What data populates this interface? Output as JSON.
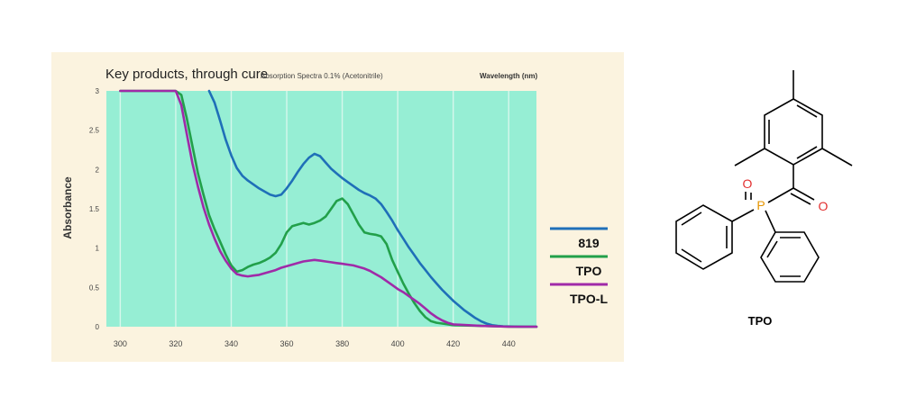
{
  "chart_data": {
    "type": "line",
    "title": "Key products, through cure",
    "subtitle": "Absorption Spectra 0.1% (Acetonitrile)",
    "xlabel": "Wavelength (nm)",
    "ylabel": "Absorbance",
    "xlim": [
      295,
      450
    ],
    "ylim": [
      0,
      3
    ],
    "xticks": [
      "300",
      "320",
      "340",
      "360",
      "380",
      "400",
      "420",
      "440"
    ],
    "yticks": [
      "0",
      "0.5",
      "1",
      "1.5",
      "2",
      "2.5",
      "3"
    ],
    "grid": true,
    "legend_position": "right",
    "series": [
      {
        "name": "819",
        "color": "#1f6fb8",
        "x": [
          332,
          334,
          336,
          338,
          340,
          342,
          344,
          346,
          348,
          350,
          352,
          354,
          356,
          358,
          360,
          362,
          364,
          366,
          368,
          370,
          372,
          374,
          376,
          378,
          380,
          382,
          384,
          386,
          388,
          390,
          392,
          394,
          396,
          398,
          400,
          402,
          404,
          406,
          408,
          410,
          412,
          414,
          416,
          418,
          420,
          422,
          424,
          426,
          428,
          430,
          432,
          434,
          436,
          438,
          440,
          442,
          444,
          446,
          448,
          450
        ],
        "y": [
          3.0,
          2.85,
          2.62,
          2.38,
          2.18,
          2.02,
          1.92,
          1.86,
          1.81,
          1.76,
          1.72,
          1.68,
          1.66,
          1.68,
          1.76,
          1.86,
          1.97,
          2.07,
          2.15,
          2.2,
          2.17,
          2.09,
          2.01,
          1.95,
          1.89,
          1.84,
          1.79,
          1.74,
          1.7,
          1.67,
          1.63,
          1.56,
          1.46,
          1.35,
          1.23,
          1.12,
          1.01,
          0.91,
          0.81,
          0.72,
          0.63,
          0.55,
          0.47,
          0.4,
          0.33,
          0.27,
          0.21,
          0.16,
          0.11,
          0.07,
          0.04,
          0.02,
          0.01,
          0.005,
          0.003,
          0.002,
          0.001,
          0.0,
          0.0,
          0.0
        ]
      },
      {
        "name": "TPO",
        "color": "#22a04a",
        "x": [
          300,
          318,
          320,
          322,
          324,
          326,
          328,
          330,
          332,
          334,
          336,
          338,
          340,
          342,
          344,
          346,
          348,
          350,
          352,
          354,
          356,
          358,
          360,
          362,
          364,
          366,
          368,
          370,
          372,
          374,
          376,
          378,
          380,
          382,
          384,
          386,
          388,
          390,
          392,
          394,
          396,
          398,
          400,
          402,
          404,
          406,
          408,
          410,
          412,
          414,
          416,
          418,
          420,
          430,
          440,
          450
        ],
        "y": [
          3.0,
          3.0,
          3.0,
          2.95,
          2.65,
          2.3,
          1.95,
          1.68,
          1.42,
          1.24,
          1.08,
          0.92,
          0.78,
          0.7,
          0.72,
          0.76,
          0.79,
          0.81,
          0.84,
          0.88,
          0.94,
          1.05,
          1.2,
          1.28,
          1.3,
          1.32,
          1.3,
          1.32,
          1.35,
          1.4,
          1.5,
          1.6,
          1.63,
          1.56,
          1.43,
          1.3,
          1.2,
          1.18,
          1.17,
          1.15,
          1.05,
          0.85,
          0.7,
          0.55,
          0.42,
          0.3,
          0.2,
          0.12,
          0.07,
          0.05,
          0.04,
          0.03,
          0.02,
          0.01,
          0.0,
          0.0
        ]
      },
      {
        "name": "TPO-L",
        "color": "#a02aa8",
        "x": [
          300,
          318,
          320,
          322,
          324,
          326,
          328,
          330,
          332,
          334,
          336,
          338,
          340,
          342,
          344,
          346,
          348,
          350,
          352,
          354,
          356,
          358,
          360,
          362,
          364,
          366,
          368,
          370,
          372,
          374,
          376,
          378,
          380,
          382,
          384,
          386,
          388,
          390,
          392,
          394,
          396,
          398,
          400,
          402,
          404,
          406,
          408,
          410,
          412,
          414,
          416,
          418,
          420,
          430,
          440,
          450
        ],
        "y": [
          3.0,
          3.0,
          3.0,
          2.82,
          2.45,
          2.08,
          1.78,
          1.52,
          1.3,
          1.12,
          0.96,
          0.84,
          0.74,
          0.67,
          0.65,
          0.64,
          0.65,
          0.66,
          0.68,
          0.7,
          0.72,
          0.75,
          0.77,
          0.79,
          0.81,
          0.83,
          0.84,
          0.85,
          0.84,
          0.83,
          0.82,
          0.81,
          0.8,
          0.79,
          0.78,
          0.76,
          0.74,
          0.71,
          0.67,
          0.63,
          0.58,
          0.53,
          0.48,
          0.44,
          0.39,
          0.34,
          0.29,
          0.23,
          0.17,
          0.12,
          0.08,
          0.05,
          0.03,
          0.01,
          0.0,
          0.0
        ]
      }
    ]
  },
  "structure": {
    "label": "TPO",
    "atoms": {
      "phosphorus": "P",
      "oxygen_1": "O",
      "oxygen_2": "O"
    },
    "colors": {
      "phosphorus": "#e69500",
      "oxygen": "#e23030",
      "bond": "#000000"
    }
  }
}
